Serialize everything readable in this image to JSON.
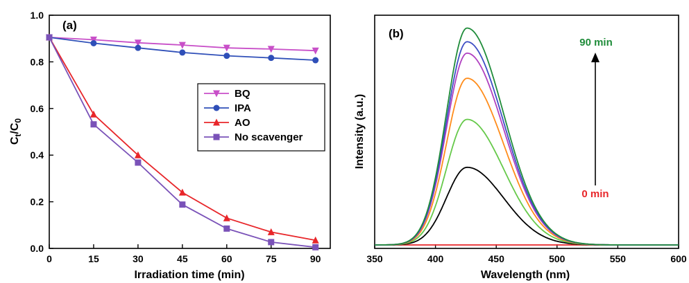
{
  "chart_data": [
    {
      "type": "line",
      "panel_label": "(a)",
      "xlabel": "Irradiation time (min)",
      "ylabel_main": "C",
      "ylabel_sub1": "t",
      "ylabel_slash": "/C",
      "ylabel_sub2": "0",
      "xlim": [
        0,
        95
      ],
      "ylim": [
        0,
        1.0
      ],
      "xticks": [
        0,
        15,
        30,
        45,
        60,
        75,
        90
      ],
      "yticks": [
        "0.0",
        "0.2",
        "0.4",
        "0.6",
        "0.8",
        "1.0"
      ],
      "x": [
        0,
        15,
        30,
        45,
        60,
        75,
        90
      ],
      "legend_position": "center-right",
      "series": [
        {
          "name": "BQ",
          "color": "#c84fc8",
          "marker": "triangle-down",
          "values": [
            0.905,
            0.895,
            0.882,
            0.872,
            0.86,
            0.855,
            0.848
          ]
        },
        {
          "name": "IPA",
          "color": "#2f4fb8",
          "marker": "circle",
          "values": [
            0.905,
            0.88,
            0.86,
            0.84,
            0.826,
            0.817,
            0.807
          ]
        },
        {
          "name": "AO",
          "color": "#e8262a",
          "marker": "triangle-up",
          "values": [
            0.905,
            0.575,
            0.4,
            0.24,
            0.13,
            0.07,
            0.035
          ]
        },
        {
          "name": "No scavenger",
          "color": "#7a52b8",
          "marker": "square",
          "values": [
            0.905,
            0.532,
            0.368,
            0.188,
            0.085,
            0.027,
            0.005
          ]
        }
      ]
    },
    {
      "type": "line",
      "panel_label": "(b)",
      "xlabel": "Wavelength (nm)",
      "ylabel": "Intensity (a.u.)",
      "xlim": [
        350,
        600
      ],
      "xticks": [
        350,
        400,
        450,
        500,
        550,
        600
      ],
      "yticks_shown": false,
      "annotations": {
        "top": "90 min",
        "bottom": "0 min",
        "top_color": "#1f8c3a",
        "bottom_color": "#e8262a"
      },
      "peak_wavelength": 426,
      "series_peak_intensity_relative": [
        {
          "color": "#e8262a",
          "peak": 0.0
        },
        {
          "color": "#000000",
          "peak": 0.34
        },
        {
          "color": "#66c94a",
          "peak": 0.55
        },
        {
          "color": "#ff8c1a",
          "peak": 0.73
        },
        {
          "color": "#b040c0",
          "peak": 0.84
        },
        {
          "color": "#3d4ec4",
          "peak": 0.89
        },
        {
          "color": "#1f8c3a",
          "peak": 0.95
        }
      ]
    }
  ]
}
